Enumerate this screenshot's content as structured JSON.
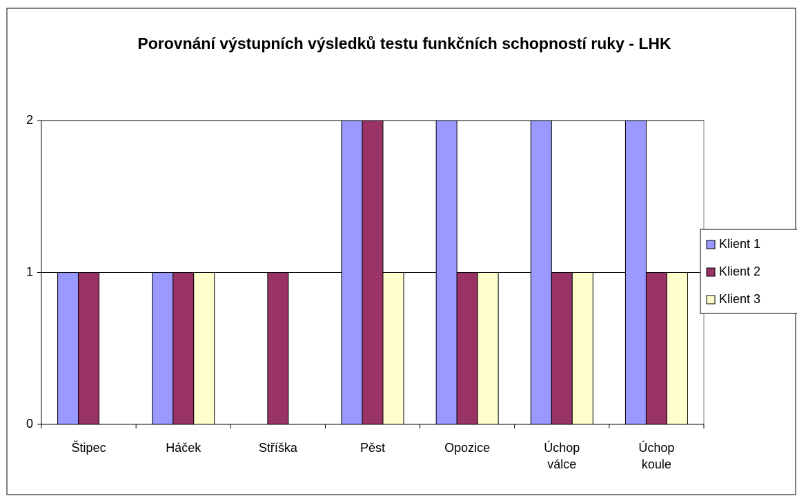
{
  "chart_data": {
    "type": "bar",
    "title": "Porovnání výstupních výsledků testu funkčních schopností ruky - LHK",
    "categories": [
      "Štipec",
      "Háček",
      "Stříška",
      "Pěst",
      "Opozice",
      "Úchop válce",
      "Úchop koule"
    ],
    "series": [
      {
        "name": "Klient 1",
        "color": "#9999ff",
        "values": [
          1,
          1,
          0,
          2,
          2,
          2,
          2
        ]
      },
      {
        "name": "Klient 2",
        "color": "#993366",
        "values": [
          1,
          1,
          1,
          2,
          1,
          1,
          1
        ]
      },
      {
        "name": "Klient 3",
        "color": "#ffffcc",
        "values": [
          0,
          1,
          0,
          1,
          1,
          1,
          1
        ]
      }
    ],
    "ylim": [
      0,
      2
    ],
    "yticks": [
      0,
      1,
      2
    ],
    "grid": true,
    "legend": "right"
  }
}
